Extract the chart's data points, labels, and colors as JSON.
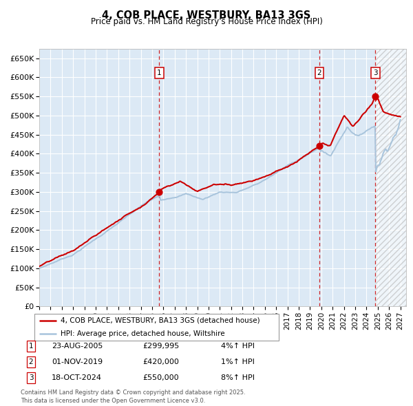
{
  "title": "4, COB PLACE, WESTBURY, BA13 3GS",
  "subtitle": "Price paid vs. HM Land Registry's House Price Index (HPI)",
  "ylim": [
    0,
    675000
  ],
  "xlim_start": 1995.0,
  "xlim_end": 2027.5,
  "yticks": [
    0,
    50000,
    100000,
    150000,
    200000,
    250000,
    300000,
    350000,
    400000,
    450000,
    500000,
    550000,
    600000,
    650000
  ],
  "ytick_labels": [
    "£0",
    "£50K",
    "£100K",
    "£150K",
    "£200K",
    "£250K",
    "£300K",
    "£350K",
    "£400K",
    "£450K",
    "£500K",
    "£550K",
    "£600K",
    "£650K"
  ],
  "xtick_years": [
    1995,
    1996,
    1997,
    1998,
    1999,
    2000,
    2001,
    2002,
    2003,
    2004,
    2005,
    2006,
    2007,
    2008,
    2009,
    2010,
    2011,
    2012,
    2013,
    2014,
    2015,
    2016,
    2017,
    2018,
    2019,
    2020,
    2021,
    2022,
    2023,
    2024,
    2025,
    2026,
    2027
  ],
  "bg_color": "#dce9f5",
  "grid_color": "#ffffff",
  "hpi_line_color": "#a8c4dc",
  "price_line_color": "#cc0000",
  "sale_marker_color": "#cc0000",
  "sale_dot_size": 40,
  "sales": [
    {
      "date_num": 2005.64,
      "price": 299995,
      "label": "1",
      "pct": "4%↑ HPI",
      "date_str": "23-AUG-2005",
      "price_str": "£299,995"
    },
    {
      "date_num": 2019.83,
      "price": 420000,
      "label": "2",
      "pct": "1%↑ HPI",
      "date_str": "01-NOV-2019",
      "price_str": "£420,000"
    },
    {
      "date_num": 2024.79,
      "price": 550000,
      "label": "3",
      "pct": "8%↑ HPI",
      "date_str": "18-OCT-2024",
      "price_str": "£550,000"
    }
  ],
  "legend_label_price": "4, COB PLACE, WESTBURY, BA13 3GS (detached house)",
  "legend_label_hpi": "HPI: Average price, detached house, Wiltshire",
  "footer": "Contains HM Land Registry data © Crown copyright and database right 2025.\nThis data is licensed under the Open Government Licence v3.0.",
  "last_sale_date": 2024.79
}
